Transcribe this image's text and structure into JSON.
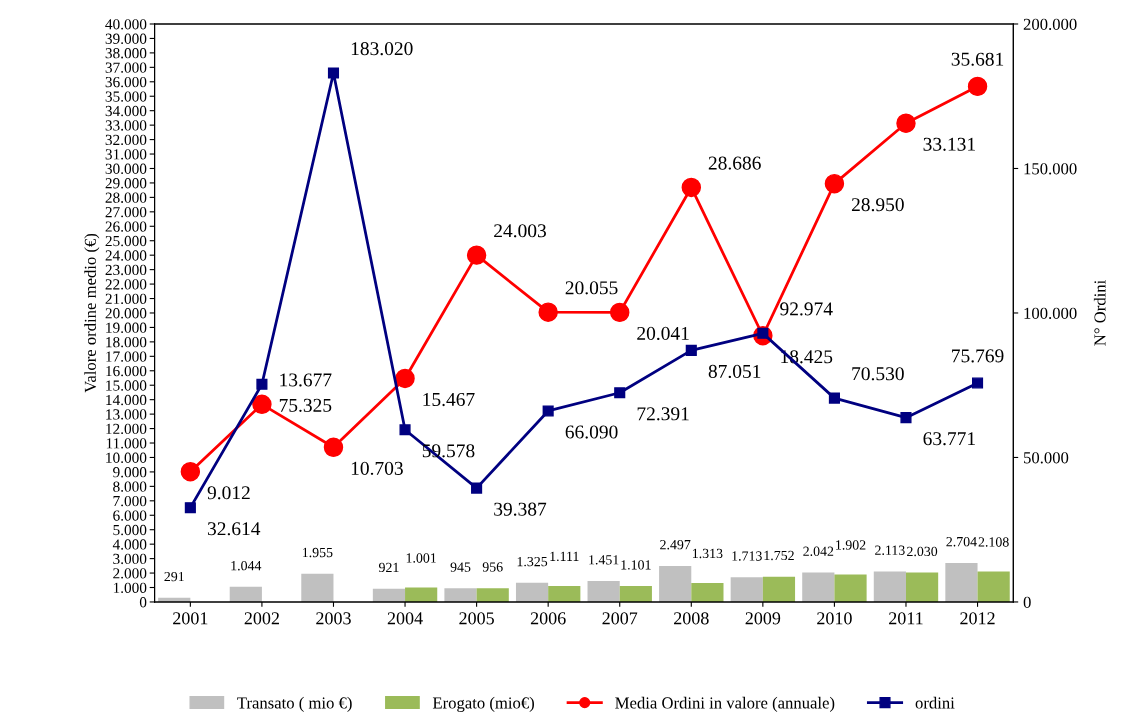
{
  "chart_data": {
    "type": "bar",
    "ylabel": "Valore ordine medio (€)",
    "y2label": "N° Ordini",
    "categories": [
      "2001",
      "2002",
      "2003",
      "2004",
      "2005",
      "2006",
      "2007",
      "2008",
      "2009",
      "2010",
      "2011",
      "2012"
    ],
    "ylim": [
      0,
      40000
    ],
    "yticks": [
      0,
      {
        "value": 1000,
        "label": "1.000"
      },
      {
        "value": 2000,
        "label": "2.000"
      },
      {
        "value": 3000,
        "label": "3.000"
      },
      {
        "value": 4000,
        "label": "4.000"
      },
      {
        "value": 5000,
        "label": "5.000"
      },
      {
        "value": 6000,
        "label": "6.000"
      },
      {
        "value": 7000,
        "label": "7.000"
      },
      {
        "value": 8000,
        "label": "8.000"
      },
      {
        "value": 9000,
        "label": "9.000"
      },
      {
        "value": 10000,
        "label": "10.000"
      },
      {
        "value": 11000,
        "label": "11.000"
      },
      {
        "value": 12000,
        "label": "12.000"
      },
      {
        "value": 13000,
        "label": "13.000"
      },
      {
        "value": 14000,
        "label": "14.000"
      },
      {
        "value": 15000,
        "label": "15.000"
      },
      {
        "value": 16000,
        "label": "16.000"
      },
      {
        "value": 17000,
        "label": "17.000"
      },
      {
        "value": 18000,
        "label": "18.000"
      },
      {
        "value": 19000,
        "label": "19.000"
      },
      {
        "value": 20000,
        "label": "20.000"
      },
      {
        "value": 21000,
        "label": "21.000"
      },
      {
        "value": 22000,
        "label": "22.000"
      },
      {
        "value": 23000,
        "label": "23.000"
      },
      {
        "value": 24000,
        "label": "24.000"
      },
      {
        "value": 25000,
        "label": "25.000"
      },
      {
        "value": 26000,
        "label": "26.000"
      },
      {
        "value": 27000,
        "label": "27.000"
      },
      {
        "value": 28000,
        "label": "28.000"
      },
      {
        "value": 29000,
        "label": "29.000"
      },
      {
        "value": 30000,
        "label": "30.000"
      },
      {
        "value": 31000,
        "label": "31.000"
      },
      {
        "value": 32000,
        "label": "32.000"
      },
      {
        "value": 33000,
        "label": "33.000"
      },
      {
        "value": 34000,
        "label": "34.000"
      },
      {
        "value": 35000,
        "label": "35.000"
      },
      {
        "value": 36000,
        "label": "36.000"
      },
      {
        "value": 37000,
        "label": "37.000"
      },
      {
        "value": 38000,
        "label": "38.000"
      },
      {
        "value": 39000,
        "label": "39.000"
      },
      {
        "value": 40000,
        "label": "40.000"
      }
    ],
    "y2lim": [
      0,
      200000
    ],
    "y2ticks": [
      0,
      {
        "value": 50000,
        "label": "50.000"
      },
      {
        "value": 100000,
        "label": "100.000"
      },
      {
        "value": 150000,
        "label": "150.000"
      },
      {
        "value": 200000,
        "label": "200.000"
      }
    ],
    "grid": false,
    "legend": "bottom",
    "series": [
      {
        "name": "Transato ( mio €)",
        "color": "#c0c0c0",
        "values": [
          291,
          1044,
          1955,
          921,
          945,
          1325,
          1451,
          2497,
          1713,
          2042,
          2113,
          2704
        ],
        "value_labels": [
          "291",
          "1.044",
          "1.955",
          "921",
          "945",
          "1.325",
          "1.451",
          "2.497",
          "1.713",
          "2.042",
          "2.113",
          "2.704"
        ]
      },
      {
        "name": "Erogato (mio€)",
        "color": "#9bbb59",
        "values": [
          null,
          null,
          null,
          1001,
          956,
          1111,
          1101,
          1313,
          1752,
          1902,
          2030,
          2108
        ],
        "value_labels": [
          null,
          null,
          null,
          "1.001",
          "956",
          "1.111",
          "1.101",
          "1.313",
          "1.752",
          "1.902",
          "2.030",
          "2.108"
        ]
      },
      {
        "name": "Media Ordini in valore (annuale)",
        "type": "line",
        "color": "#ff0000",
        "marker": "circle",
        "line_style": "solid",
        "values": [
          9012,
          13677,
          10703,
          15467,
          24003,
          20055,
          20041,
          28686,
          18425,
          28950,
          33131,
          35681
        ],
        "value_labels": [
          "9.012",
          "13.677",
          "10.703",
          "15.467",
          "24.003",
          "20.055",
          "20.041",
          "28.686",
          "18.425",
          "28.950",
          "33.131",
          "35.681"
        ]
      },
      {
        "name": "ordini",
        "type": "line",
        "axis": "y2",
        "color": "#000080",
        "marker": "square",
        "line_style": "solid",
        "values": [
          32614,
          75325,
          183020,
          59578,
          39387,
          66090,
          72391,
          87051,
          92974,
          70530,
          63771,
          75769
        ],
        "value_labels": [
          "32.614",
          "75.325",
          "183.020",
          "59.578",
          "39.387",
          "66.090",
          "72.391",
          "87.051",
          "92.974",
          "70.530",
          "63.771",
          "75.769"
        ]
      }
    ]
  }
}
